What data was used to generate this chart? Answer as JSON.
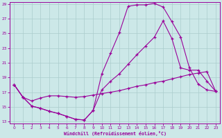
{
  "xlabel": "Windchill (Refroidissement éolien,°C)",
  "xlim": [
    0,
    23
  ],
  "ylim": [
    13,
    29
  ],
  "xticks": [
    0,
    1,
    2,
    3,
    4,
    5,
    6,
    7,
    8,
    9,
    10,
    11,
    12,
    13,
    14,
    15,
    16,
    17,
    18,
    19,
    20,
    21,
    22,
    23
  ],
  "yticks": [
    13,
    15,
    17,
    19,
    21,
    23,
    25,
    27,
    29
  ],
  "bg_color": "#cce8e8",
  "line_color": "#990099",
  "grid_color": "#aacccc",
  "curve1_x": [
    0,
    1,
    2,
    3,
    4,
    5,
    6,
    7,
    8,
    9,
    10,
    11,
    12,
    13,
    14,
    15,
    16,
    17,
    18,
    19,
    20,
    21,
    22,
    23
  ],
  "curve1_y": [
    18.0,
    16.3,
    15.1,
    14.8,
    14.4,
    14.1,
    13.7,
    13.3,
    13.2,
    14.5,
    19.5,
    22.3,
    25.1,
    28.7,
    28.9,
    28.9,
    29.1,
    28.6,
    26.6,
    24.5,
    20.3,
    18.1,
    17.3,
    17.1
  ],
  "curve2_x": [
    0,
    1,
    2,
    3,
    4,
    5,
    6,
    7,
    8,
    9,
    10,
    11,
    12,
    13,
    14,
    15,
    16,
    17,
    18,
    19,
    20,
    21,
    22,
    23
  ],
  "curve2_y": [
    18.0,
    16.3,
    15.1,
    14.8,
    14.4,
    14.1,
    13.7,
    13.3,
    13.2,
    14.5,
    17.3,
    18.5,
    19.5,
    20.8,
    22.1,
    23.3,
    24.5,
    26.7,
    24.3,
    20.3,
    20.0,
    20.0,
    18.5,
    17.1
  ],
  "curve3_x": [
    0,
    1,
    2,
    3,
    4,
    5,
    6,
    7,
    8,
    9,
    10,
    11,
    12,
    13,
    14,
    15,
    16,
    17,
    18,
    19,
    20,
    21,
    22,
    23
  ],
  "curve3_y": [
    18.0,
    16.3,
    15.8,
    16.2,
    16.5,
    16.5,
    16.4,
    16.3,
    16.4,
    16.6,
    16.8,
    17.0,
    17.2,
    17.5,
    17.8,
    18.0,
    18.3,
    18.5,
    18.8,
    19.1,
    19.4,
    19.6,
    19.8,
    17.1
  ]
}
